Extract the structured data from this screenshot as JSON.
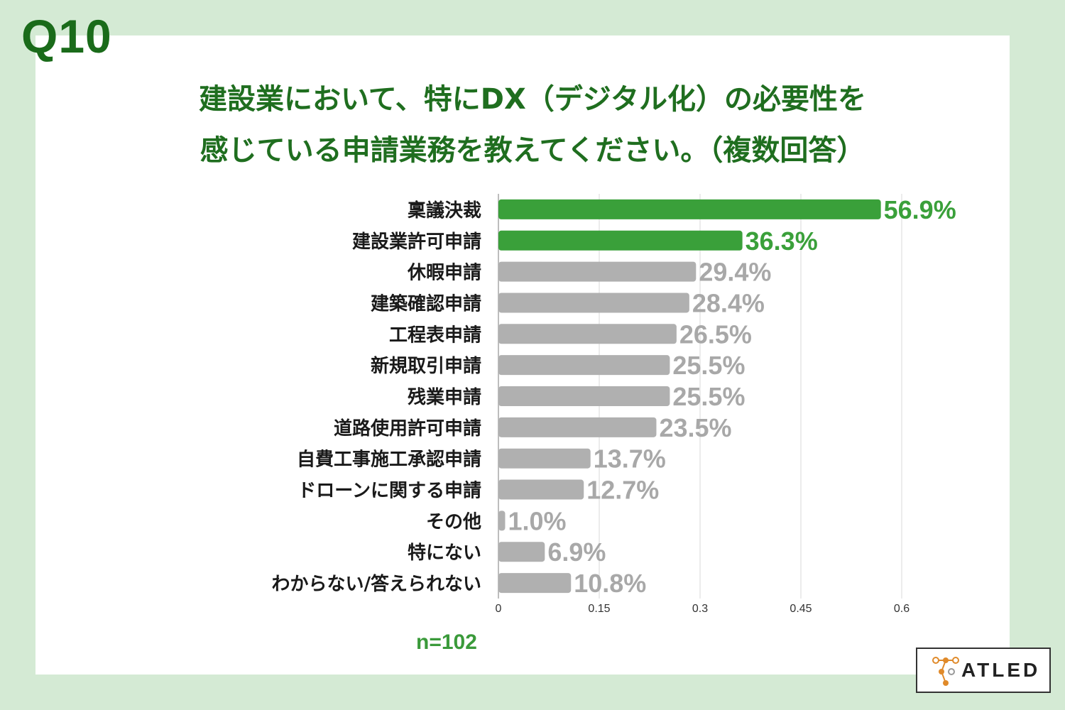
{
  "question_label": "Q10",
  "title_line1": "建設業において、特にDX（デジタル化）の必要性を",
  "title_line2": "感じている申請業務を教えてください。（複数回答）",
  "sample_size": "n=102",
  "logo_text": "ATLED",
  "colors": {
    "highlight": "#3aa03a",
    "default": "#b0b0b0",
    "highlight_label": "#3aa03a",
    "default_label": "#a8a8a8",
    "background": "#d4ead4",
    "title": "#1f6e1f"
  },
  "chart_data": {
    "type": "bar",
    "orientation": "horizontal",
    "categories": [
      "稟議決裁",
      "建設業許可申請",
      "休暇申請",
      "建築確認申請",
      "工程表申請",
      "新規取引申請",
      "残業申請",
      "道路使用許可申請",
      "自費工事施工承認申請",
      "ドローンに関する申請",
      "その他",
      "特にない",
      "わからない/答えられない"
    ],
    "values": [
      0.569,
      0.363,
      0.294,
      0.284,
      0.265,
      0.255,
      0.255,
      0.235,
      0.137,
      0.127,
      0.01,
      0.069,
      0.108
    ],
    "value_labels": [
      "56.9%",
      "36.3%",
      "29.4%",
      "28.4%",
      "26.5%",
      "25.5%",
      "25.5%",
      "23.5%",
      "13.7%",
      "12.7%",
      "1.0%",
      "6.9%",
      "10.8%"
    ],
    "highlighted": [
      true,
      true,
      false,
      false,
      false,
      false,
      false,
      false,
      false,
      false,
      false,
      false,
      false
    ],
    "xlim": [
      0,
      0.6
    ],
    "xticks": [
      0,
      0.15,
      0.3,
      0.45,
      0.6
    ],
    "xtick_labels": [
      "0",
      "0.15",
      "0.3",
      "0.45",
      "0.6"
    ],
    "grid": true
  }
}
